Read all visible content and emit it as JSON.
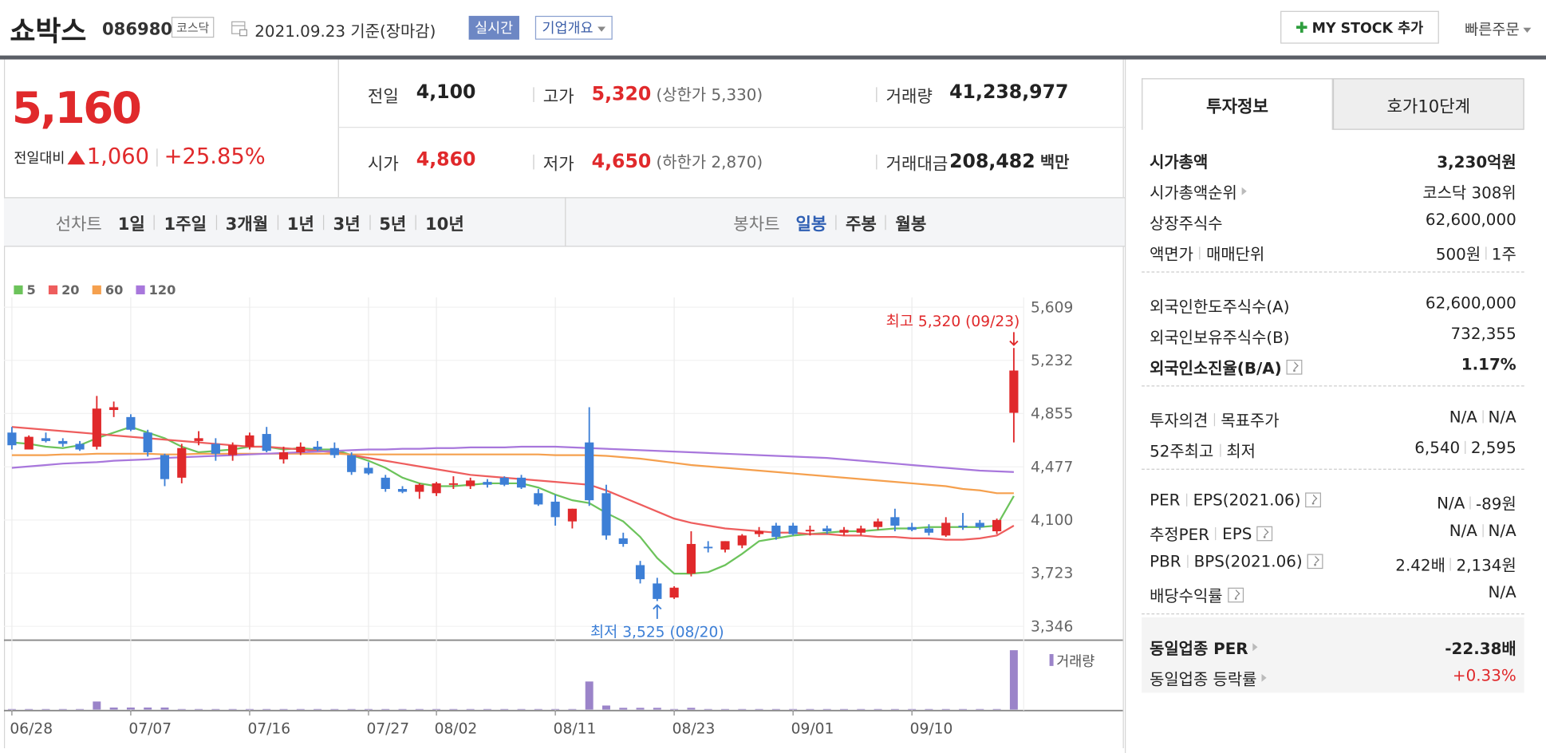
{
  "header": {
    "name": "쇼박스",
    "code": "086980",
    "market": "코스닥",
    "date": "2021.09.23",
    "basis": "기준(장마감)",
    "realtime": "실시간",
    "overview": "기업개요",
    "mystock": "MY STOCK 추가",
    "quick_order": "빠른주문"
  },
  "price": {
    "current": "5,160",
    "change_label": "전일대비",
    "change": "1,060",
    "rate": "+25.85%"
  },
  "quote": {
    "rows": [
      {
        "label": "전일",
        "value": "4,100",
        "color": "#222"
      },
      {
        "label": "고가",
        "value": "5,320",
        "extra": "(상한가 5,330)",
        "color": "#e0292b"
      },
      {
        "label": "거래량",
        "value": "41,238,977",
        "color": "#222"
      },
      {
        "label": "시가",
        "value": "4,860",
        "color": "#e0292b"
      },
      {
        "label": "저가",
        "value": "4,650",
        "extra": "(하한가 2,870)",
        "color": "#e0292b"
      },
      {
        "label": "거래대금",
        "value": "208,482",
        "unit": "백만",
        "color": "#222"
      }
    ]
  },
  "chart_tabs": {
    "line_label": "선차트",
    "line": [
      "1일",
      "1주일",
      "3개월",
      "1년",
      "3년",
      "5년",
      "10년"
    ],
    "candle_label": "봉차트",
    "candle": [
      "일봉",
      "주봉",
      "월봉"
    ],
    "active_candle": 0
  },
  "side": {
    "tabs": [
      "투자정보",
      "호가10단계"
    ],
    "active_tab": 0,
    "groups": [
      {
        "rows": [
          {
            "label": [
              "시가총액"
            ],
            "value": [
              "3,230억원"
            ],
            "bold": true
          },
          {
            "label": [
              "시가총액순위"
            ],
            "arrow": true,
            "value": [
              "코스닥 308위"
            ]
          },
          {
            "label": [
              "상장주식수"
            ],
            "value": [
              "62,600,000"
            ]
          },
          {
            "label": [
              "액면가",
              "매매단위"
            ],
            "value": [
              "500원",
              "1주"
            ]
          }
        ]
      },
      {
        "rows": [
          {
            "label": [
              "외국인한도주식수(A)"
            ],
            "value": [
              "62,600,000"
            ]
          },
          {
            "label": [
              "외국인보유주식수(B)"
            ],
            "value": [
              "732,355"
            ]
          },
          {
            "label": [
              "외국인소진율(B/A)"
            ],
            "help": true,
            "bold": true,
            "value": [
              "1.17%"
            ]
          }
        ]
      },
      {
        "rows": [
          {
            "label": [
              "투자의견",
              "목표주가"
            ],
            "value": [
              "N/A",
              "N/A"
            ]
          },
          {
            "label": [
              "52주최고",
              "최저"
            ],
            "value": [
              "6,540",
              "2,595"
            ]
          }
        ]
      },
      {
        "rows": [
          {
            "label": [
              "PER",
              "EPS(2021.06)"
            ],
            "help": true,
            "value": [
              "N/A",
              "-89원"
            ]
          },
          {
            "label": [
              "추정PER",
              "EPS"
            ],
            "help": true,
            "value": [
              "N/A",
              "N/A"
            ]
          },
          {
            "label": [
              "PBR",
              "BPS(2021.06)"
            ],
            "help": true,
            "value": [
              "2.42배",
              "2,134원"
            ]
          },
          {
            "label": [
              "배당수익률"
            ],
            "help": true,
            "value": [
              "N/A"
            ]
          }
        ]
      },
      {
        "shaded": true,
        "rows": [
          {
            "label": [
              "동일업종 PER"
            ],
            "arrow": true,
            "bold": true,
            "value": [
              "-22.38배"
            ]
          },
          {
            "label": [
              "동일업종 등락률"
            ],
            "arrow": true,
            "value": [
              "+0.33%"
            ],
            "value_color": "#e0292b"
          }
        ]
      }
    ]
  },
  "chart_data": {
    "type": "candlestick",
    "x": [
      "06/28",
      null,
      null,
      null,
      null,
      null,
      null,
      "07/07",
      null,
      null,
      null,
      null,
      null,
      null,
      "07/16",
      null,
      null,
      null,
      null,
      null,
      null,
      "07/27",
      null,
      null,
      null,
      "08/02",
      null,
      null,
      null,
      null,
      null,
      null,
      "08/11",
      null,
      null,
      null,
      null,
      null,
      null,
      "08/23",
      null,
      null,
      null,
      null,
      null,
      null,
      "09/01",
      null,
      null,
      null,
      null,
      null,
      null,
      "09/10",
      null,
      null,
      null,
      null,
      null,
      null
    ],
    "open": [
      4720,
      4600,
      4680,
      4660,
      4640,
      4620,
      4880,
      4830,
      4720,
      4560,
      4400,
      4660,
      4640,
      4560,
      4620,
      4710,
      4530,
      4580,
      4620,
      4610,
      4560,
      4470,
      4400,
      4320,
      4300,
      4290,
      4350,
      4340,
      4370,
      4400,
      4400,
      4290,
      4230,
      4090,
      4650,
      4290,
      3970,
      3780,
      3650,
      3550,
      3720,
      3910,
      3890,
      3920,
      4000,
      4060,
      4060,
      4020,
      4040,
      4010,
      4010,
      4050,
      4120,
      4050,
      4040,
      3990,
      4060,
      4080,
      4020,
      4860
    ],
    "high": [
      4760,
      4700,
      4720,
      4680,
      4660,
      4980,
      4940,
      4850,
      4740,
      4570,
      4640,
      4730,
      4680,
      4650,
      4720,
      4760,
      4620,
      4650,
      4660,
      4650,
      4580,
      4510,
      4420,
      4340,
      4360,
      4370,
      4410,
      4400,
      4390,
      4410,
      4420,
      4320,
      4280,
      4180,
      4900,
      4350,
      4010,
      3810,
      3690,
      3630,
      4020,
      3950,
      3950,
      4000,
      4050,
      4080,
      4080,
      4060,
      4060,
      4050,
      4060,
      4110,
      4180,
      4080,
      4070,
      4120,
      4150,
      4100,
      4110,
      5320
    ],
    "low": [
      4600,
      4600,
      4650,
      4620,
      4590,
      4600,
      4830,
      4730,
      4550,
      4340,
      4360,
      4630,
      4520,
      4520,
      4600,
      4580,
      4500,
      4560,
      4590,
      4540,
      4420,
      4420,
      4300,
      4290,
      4250,
      4270,
      4320,
      4320,
      4330,
      4340,
      4320,
      4200,
      4060,
      4040,
      4200,
      3960,
      3910,
      3650,
      3525,
      3540,
      3700,
      3870,
      3870,
      3900,
      3980,
      3960,
      3990,
      3990,
      4000,
      3990,
      3990,
      4030,
      4020,
      4020,
      3990,
      3980,
      4030,
      4030,
      4000,
      4650
    ],
    "close": [
      4630,
      4690,
      4660,
      4640,
      4600,
      4890,
      4900,
      4740,
      4580,
      4390,
      4610,
      4680,
      4570,
      4630,
      4700,
      4590,
      4580,
      4620,
      4600,
      4560,
      4440,
      4430,
      4320,
      4300,
      4350,
      4360,
      4360,
      4380,
      4350,
      4350,
      4330,
      4210,
      4120,
      4180,
      4240,
      3990,
      3930,
      3680,
      3540,
      3620,
      3930,
      3900,
      3950,
      3990,
      4020,
      3980,
      4000,
      4030,
      4020,
      4030,
      4040,
      4090,
      4060,
      4030,
      4010,
      4080,
      4050,
      4050,
      4100,
      5160
    ],
    "up_color": "#e0292b",
    "down_color": "#3d7fd6",
    "series": [
      {
        "name": "5",
        "color": "#6cc35b",
        "values": [
          4650,
          4640,
          4620,
          4610,
          4630,
          4680,
          4720,
          4760,
          4720,
          4680,
          4620,
          4580,
          4590,
          4600,
          4620,
          4620,
          4600,
          4610,
          4600,
          4600,
          4560,
          4520,
          4470,
          4400,
          4360,
          4340,
          4340,
          4350,
          4360,
          4360,
          4360,
          4330,
          4280,
          4240,
          4220,
          4150,
          4090,
          3980,
          3830,
          3720,
          3720,
          3730,
          3780,
          3860,
          3950,
          3970,
          3990,
          4000,
          4010,
          4020,
          4020,
          4030,
          4040,
          4040,
          4050,
          4050,
          4050,
          4050,
          4060,
          4270
        ]
      },
      {
        "name": "20",
        "color": "#ee5d5d",
        "values": [
          4760,
          4750,
          4740,
          4730,
          4720,
          4710,
          4700,
          4690,
          4680,
          4670,
          4660,
          4650,
          4640,
          4630,
          4620,
          4620,
          4610,
          4600,
          4590,
          4580,
          4560,
          4540,
          4520,
          4500,
          4480,
          4460,
          4440,
          4420,
          4410,
          4400,
          4390,
          4380,
          4370,
          4360,
          4350,
          4310,
          4260,
          4210,
          4160,
          4110,
          4080,
          4060,
          4040,
          4030,
          4020,
          4010,
          4010,
          4000,
          4000,
          3990,
          3990,
          3980,
          3980,
          3970,
          3970,
          3960,
          3960,
          3970,
          3990,
          4060
        ]
      },
      {
        "name": "60",
        "color": "#f5a04e",
        "values": [
          4560,
          4560,
          4560,
          4565,
          4565,
          4570,
          4570,
          4570,
          4570,
          4565,
          4565,
          4570,
          4570,
          4570,
          4570,
          4570,
          4570,
          4570,
          4570,
          4570,
          4565,
          4565,
          4565,
          4565,
          4565,
          4565,
          4565,
          4565,
          4565,
          4565,
          4565,
          4565,
          4560,
          4560,
          4560,
          4555,
          4545,
          4535,
          4520,
          4505,
          4490,
          4480,
          4470,
          4460,
          4450,
          4440,
          4430,
          4420,
          4410,
          4400,
          4390,
          4380,
          4370,
          4360,
          4350,
          4340,
          4320,
          4310,
          4290,
          4290
        ]
      },
      {
        "name": "120",
        "color": "#a877dc",
        "values": [
          4470,
          4480,
          4490,
          4500,
          4505,
          4510,
          4520,
          4525,
          4530,
          4540,
          4545,
          4550,
          4555,
          4560,
          4565,
          4570,
          4575,
          4580,
          4585,
          4590,
          4595,
          4600,
          4600,
          4605,
          4605,
          4610,
          4610,
          4615,
          4615,
          4615,
          4620,
          4620,
          4620,
          4615,
          4610,
          4605,
          4600,
          4595,
          4590,
          4585,
          4580,
          4575,
          4570,
          4565,
          4560,
          4555,
          4550,
          4545,
          4540,
          4530,
          4520,
          4510,
          4500,
          4490,
          4480,
          4470,
          4460,
          4450,
          4445,
          4440
        ]
      }
    ],
    "volume": [
      400000,
      400000,
      400000,
      400000,
      400000,
      5600000,
      1400000,
      1400000,
      1400000,
      1400000,
      400000,
      400000,
      400000,
      400000,
      400000,
      400000,
      400000,
      400000,
      400000,
      400000,
      400000,
      400000,
      400000,
      400000,
      400000,
      400000,
      400000,
      400000,
      400000,
      400000,
      400000,
      400000,
      400000,
      400000,
      19500000,
      2800000,
      1200000,
      1200000,
      1200000,
      400000,
      1200000,
      400000,
      400000,
      400000,
      400000,
      400000,
      400000,
      400000,
      400000,
      400000,
      400000,
      400000,
      400000,
      400000,
      400000,
      400000,
      400000,
      400000,
      400000,
      41238977
    ],
    "volume_color": "#9b84c9",
    "volume_label": "거래량",
    "volume_lim": [
      0,
      42000000
    ],
    "ylim": [
      3346,
      5609
    ],
    "yticks": [
      {
        "value": 5609,
        "label": "5,609"
      },
      {
        "value": 5232,
        "label": "5,232"
      },
      {
        "value": 4855,
        "label": "4,855"
      },
      {
        "value": 4477,
        "label": "4,477"
      },
      {
        "value": 4100,
        "label": "4,100"
      },
      {
        "value": 3723,
        "label": "3,723"
      },
      {
        "value": 3346,
        "label": "3,346"
      }
    ],
    "grid": true,
    "annotations": {
      "high": "최고 5,320 (09/23)",
      "low": "최저 3,525 (08/20)"
    }
  }
}
